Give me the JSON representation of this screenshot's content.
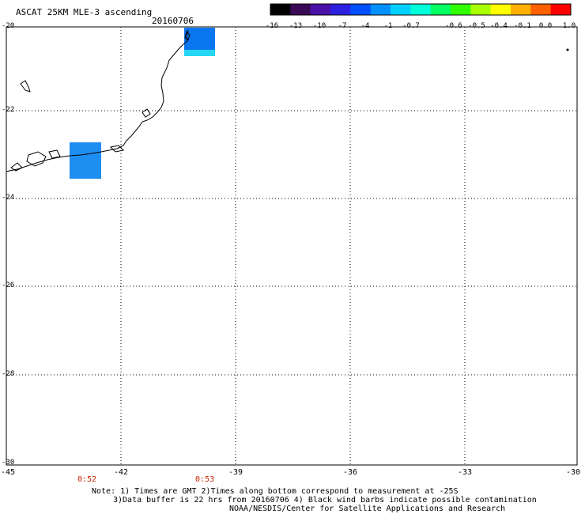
{
  "header": {
    "title": "ASCAT 25KM MLE-3 ascending",
    "date": "20160706"
  },
  "colorbar": {
    "labels": [
      "-16",
      "-13",
      "-10",
      "-7",
      "-4",
      "-1",
      "-0.7",
      "-0.6",
      "-0.5",
      "-0.4",
      "-0.1",
      "0.0",
      "1.0"
    ],
    "colors": [
      "#000000",
      "#3a0a55",
      "#4a10a8",
      "#2c20e0",
      "#0050ff",
      "#0090ff",
      "#00d0ff",
      "#00ffd8",
      "#00ff60",
      "#30ff00",
      "#aaff00",
      "#ffff00",
      "#ffb000",
      "#ff6000",
      "#ff0000"
    ]
  },
  "map": {
    "lat_labels": [
      "-20",
      "-22",
      "-24",
      "-26",
      "-28",
      "-30"
    ],
    "lon_labels": [
      "-45",
      "-42",
      "-39",
      "-36",
      "-33",
      "-30"
    ],
    "time_labels": [
      "0:52",
      "0:53"
    ],
    "cell_colors": {
      "blue": "#0a76f0",
      "cyan": "#26d6f2",
      "mid": "#1e8ef2"
    }
  },
  "note": {
    "line1": "Note: 1) Times are GMT 2)Times along bottom correspond to measurement at -25S",
    "line2": "3)Data buffer is 22 hrs from 20160706 4) Black wind barbs indicate possible contamination",
    "line3": "NOAA/NESDIS/Center for Satellite Applications and Research"
  }
}
